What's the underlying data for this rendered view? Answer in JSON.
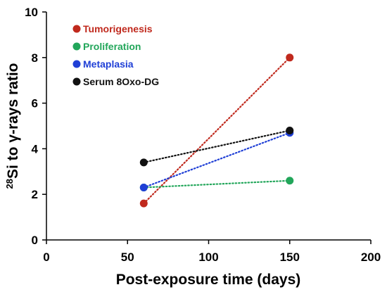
{
  "chart_data": {
    "type": "line",
    "title": "",
    "xlabel": "Post-exposure time (days)",
    "ylabel_prefix": "28",
    "ylabel": "Si to γ-rays ratio",
    "xlim": [
      0,
      200
    ],
    "ylim": [
      0,
      10
    ],
    "xticks": [
      0,
      50,
      100,
      150,
      200
    ],
    "yticks": [
      0,
      2,
      4,
      6,
      8,
      10
    ],
    "grid": false,
    "legend_position": "top-left",
    "line_style": "dotted",
    "series": [
      {
        "name": "Tumorigenesis",
        "color": "#c0291d",
        "points": [
          {
            "x": 60,
            "y": 1.6
          },
          {
            "x": 150,
            "y": 8.0
          }
        ]
      },
      {
        "name": "Proliferation",
        "color": "#22a65a",
        "points": [
          {
            "x": 60,
            "y": 2.3
          },
          {
            "x": 150,
            "y": 2.6
          }
        ]
      },
      {
        "name": "Metaplasia",
        "color": "#1f3fd6",
        "points": [
          {
            "x": 60,
            "y": 2.3
          },
          {
            "x": 150,
            "y": 4.7
          }
        ]
      },
      {
        "name": "Serum 8Oxo-DG",
        "color": "#111111",
        "points": [
          {
            "x": 60,
            "y": 3.4
          },
          {
            "x": 150,
            "y": 4.8
          }
        ]
      }
    ]
  }
}
